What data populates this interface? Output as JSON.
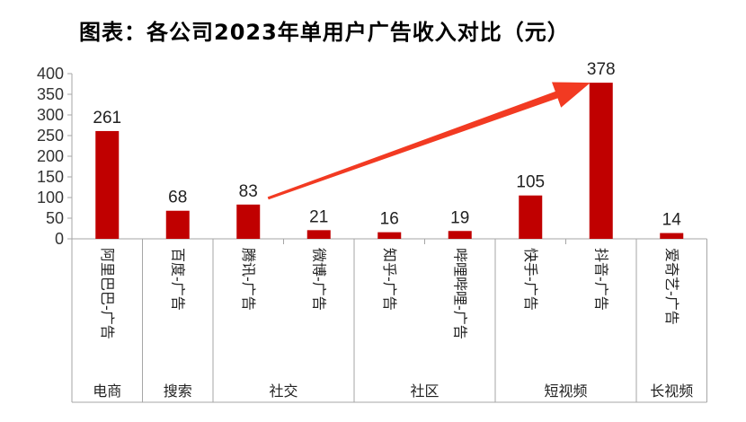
{
  "title": "图表：各公司2023年单用户广告收入对比（元）",
  "colors": {
    "bar": "#C00000",
    "arrow": "#F23A22",
    "axis": "#A6A6A6"
  },
  "chart_data": {
    "type": "bar",
    "title": "图表：各公司2023年单用户广告收入对比（元）",
    "categories": [
      "阿里巴巴-广告",
      "百度-广告",
      "腾讯-广告",
      "微博-广告",
      "知乎-广告",
      "哔哩哔哩-广告",
      "快手-广告",
      "抖音-广告",
      "爱奇艺-广告"
    ],
    "values": [
      261,
      68,
      83,
      21,
      16,
      19,
      105,
      378,
      14
    ],
    "groups": [
      {
        "label": "电商",
        "count": 1
      },
      {
        "label": "搜索",
        "count": 1
      },
      {
        "label": "社交",
        "count": 2
      },
      {
        "label": "社区",
        "count": 2
      },
      {
        "label": "短视频",
        "count": 2
      },
      {
        "label": "长视频",
        "count": 1
      }
    ],
    "y_ticks": [
      0,
      50,
      100,
      150,
      200,
      250,
      300,
      350,
      400
    ],
    "ylim": [
      0,
      400
    ],
    "grid": false,
    "annotation": {
      "type": "arrow",
      "from_category": "腾讯-广告",
      "to_category": "抖音-广告"
    }
  }
}
